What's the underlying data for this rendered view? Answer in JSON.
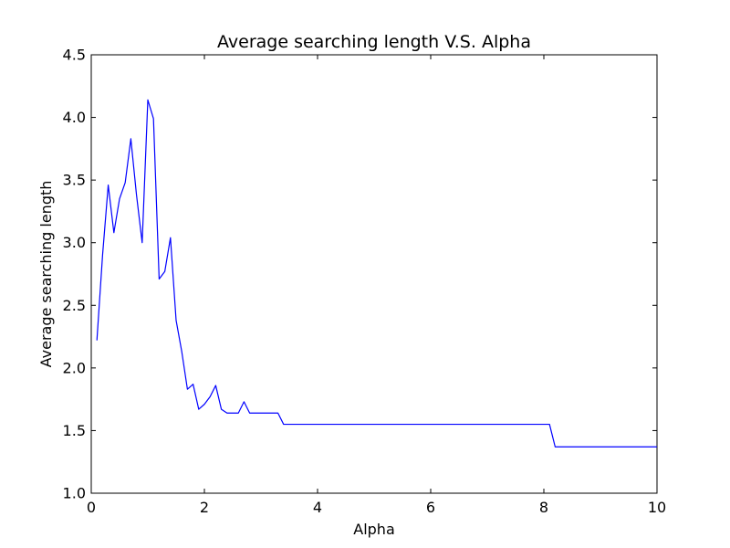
{
  "chart_data": {
    "type": "line",
    "title": "Average searching length V.S. Alpha",
    "xlabel": "Alpha",
    "ylabel": "Average searching length",
    "xlim": [
      0,
      10
    ],
    "ylim": [
      1.0,
      4.5
    ],
    "grid": false,
    "xticks": [
      0,
      2,
      4,
      6,
      8,
      10
    ],
    "xtick_labels": [
      "0",
      "2",
      "4",
      "6",
      "8",
      "10"
    ],
    "yticks": [
      1.0,
      1.5,
      2.0,
      2.5,
      3.0,
      3.5,
      4.0,
      4.5
    ],
    "ytick_labels": [
      "1.0",
      "1.5",
      "2.0",
      "2.5",
      "3.0",
      "3.5",
      "4.0",
      "4.5"
    ],
    "series": [
      {
        "name": "Average searching length",
        "color": "#0000ff",
        "x": [
          0.1,
          0.2,
          0.3,
          0.4,
          0.5,
          0.6,
          0.7,
          0.8,
          0.9,
          1.0,
          1.1,
          1.2,
          1.3,
          1.4,
          1.5,
          1.6,
          1.7,
          1.8,
          1.9,
          2.0,
          2.1,
          2.2,
          2.3,
          2.4,
          2.5,
          2.6,
          2.7,
          2.8,
          2.9,
          3.0,
          3.1,
          3.2,
          3.3,
          3.4,
          4.0,
          5.0,
          6.0,
          7.0,
          8.0,
          8.1,
          8.2,
          9.0,
          10.0
        ],
        "y": [
          2.22,
          2.9,
          3.46,
          3.08,
          3.35,
          3.48,
          3.83,
          3.38,
          3.0,
          4.14,
          3.99,
          2.71,
          2.77,
          3.04,
          2.38,
          2.13,
          1.83,
          1.87,
          1.67,
          1.71,
          1.77,
          1.86,
          1.67,
          1.64,
          1.64,
          1.64,
          1.73,
          1.64,
          1.64,
          1.64,
          1.64,
          1.64,
          1.64,
          1.55,
          1.55,
          1.55,
          1.55,
          1.55,
          1.55,
          1.55,
          1.37,
          1.37,
          1.37
        ]
      }
    ]
  }
}
